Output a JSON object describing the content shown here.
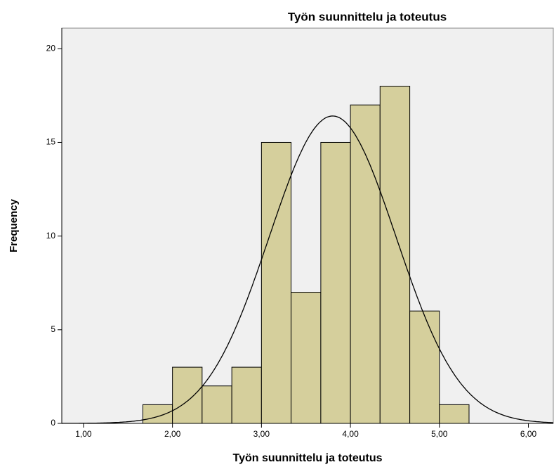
{
  "chart_data": {
    "type": "histogram",
    "title": "Työn suunnittelu ja toteutus",
    "xlabel": "Työn suunnittelu ja toteutus",
    "ylabel": "Frequency",
    "bins": [
      1.667,
      2.0,
      2.333,
      2.667,
      3.0,
      3.333,
      3.667,
      4.0,
      4.333,
      4.667,
      5.0,
      5.333
    ],
    "counts": [
      1,
      3,
      2,
      3,
      15,
      7,
      15,
      17,
      18,
      6,
      1
    ],
    "color": "#d5cf9c",
    "curve": {
      "mean": 3.8,
      "std": 0.713
    },
    "xlim": [
      0.756,
      6.28
    ],
    "ylim": [
      0,
      21.1
    ],
    "xticks": [
      {
        "value": 1,
        "label": "1,00"
      },
      {
        "value": 2,
        "label": "2,00"
      },
      {
        "value": 3,
        "label": "3,00"
      },
      {
        "value": 4,
        "label": "4,00"
      },
      {
        "value": 5,
        "label": "5,00"
      },
      {
        "value": 6,
        "label": "6,00"
      }
    ],
    "yticks": [
      0,
      5,
      10,
      15,
      20
    ]
  }
}
